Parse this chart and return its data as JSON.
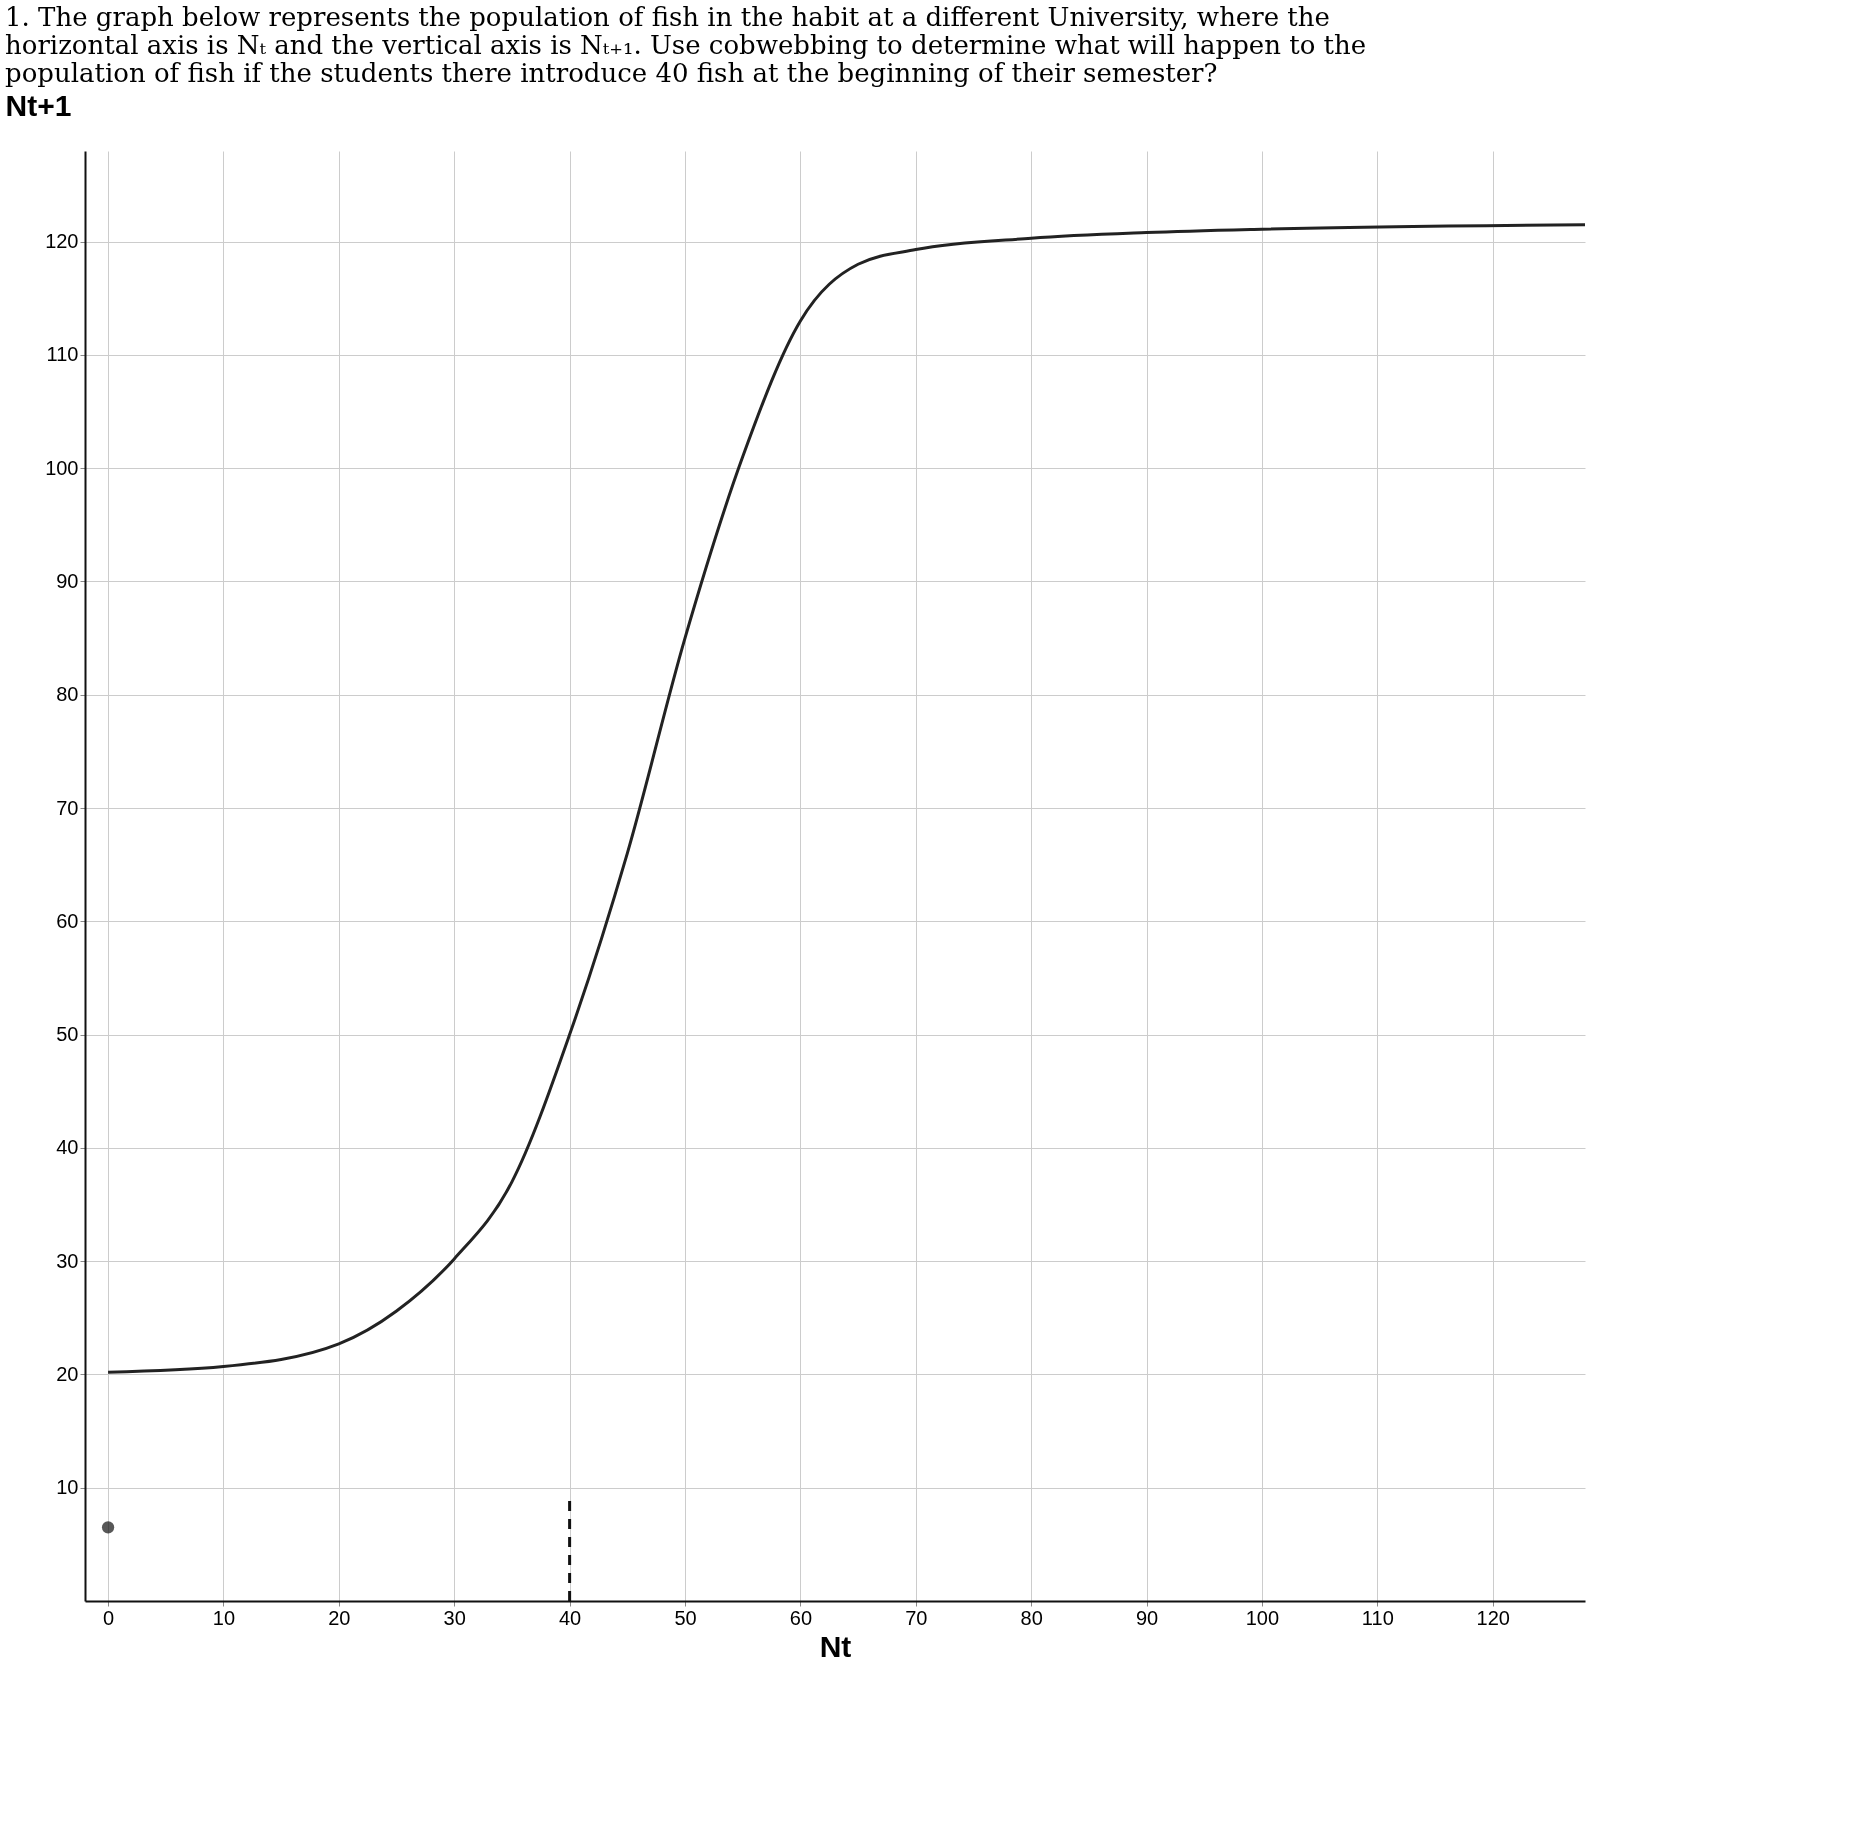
{
  "chart_data": {
    "type": "line",
    "title": "1. The graph below represents the population of fish in the habit at a different University, where the horizontal axis is Nₜ and the vertical axis is Nₜ₊₁. Use cobwebbing to determine what will happen to the population of fish if the students there introduce 40 fish at the beginning of their semester?",
    "xlabel": "Nt",
    "ylabel": "Nt+1",
    "xlim": [
      -2,
      128
    ],
    "ylim": [
      0,
      128
    ],
    "xticks": [
      0,
      10,
      20,
      30,
      40,
      50,
      60,
      70,
      80,
      90,
      100,
      110,
      120
    ],
    "yticks": [
      10,
      20,
      30,
      40,
      50,
      60,
      70,
      80,
      90,
      100,
      110,
      120
    ],
    "grid": true,
    "series": [
      {
        "color": "#222222",
        "x": [
          0,
          10,
          20,
          25,
          30,
          35,
          40,
          45,
          50,
          55,
          60,
          65,
          70,
          80,
          90,
          100,
          128
        ],
        "values": [
          20.2,
          20.7,
          22.7,
          25.6,
          30.2,
          37,
          50,
          66,
          85,
          101,
          113,
          118,
          119.3,
          120.3,
          120.8,
          121.1,
          121.5
        ]
      },
      {
        "type": "scatter",
        "color": "#111111",
        "marker": "circle",
        "x": [
          0
        ],
        "values": [
          6.5
        ]
      },
      {
        "type": "line",
        "color": "#111111",
        "line_style": "dashed",
        "x": [
          40,
          40
        ],
        "values": [
          0,
          9
        ]
      }
    ]
  }
}
